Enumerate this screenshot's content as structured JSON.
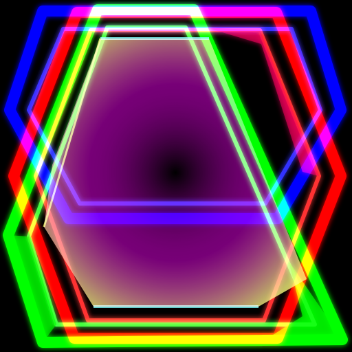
{
  "scene": {
    "background": "#000000",
    "shapes": [
      {
        "name": "blue-hexagon-frame",
        "color": "#0000ff"
      },
      {
        "name": "red-hexagon-frame",
        "color": "#ff0000"
      },
      {
        "name": "green-hexagon-frame",
        "color": "#00ff00"
      }
    ],
    "center_glow": {
      "inner": "#000000",
      "middle": "#ff00ff",
      "outer": "#ffff80"
    }
  }
}
